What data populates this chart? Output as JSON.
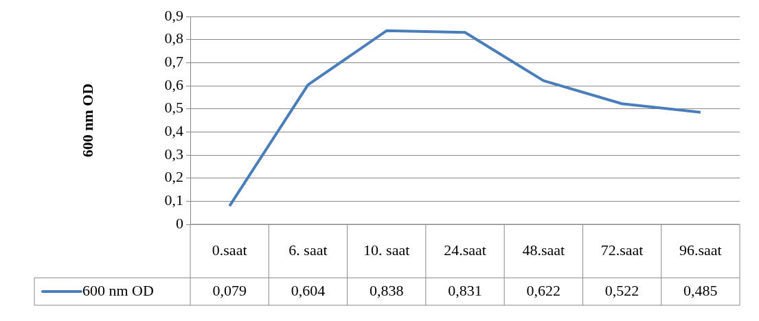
{
  "chart_data": {
    "type": "line",
    "ylabel": "600 nm OD",
    "categories": [
      "0.saat",
      "6. saat",
      "10. saat",
      "24.saat",
      "48.saat",
      "72.saat",
      "96.saat"
    ],
    "series": [
      {
        "name": "600 nm OD",
        "color": "#4a7ebb",
        "values": [
          0.079,
          0.604,
          0.838,
          0.831,
          0.622,
          0.522,
          0.485
        ],
        "value_labels": [
          "0,079",
          "0,604",
          "0,838",
          "0,831",
          "0,622",
          "0,522",
          "0,485"
        ]
      }
    ],
    "ylim": [
      0,
      0.9
    ],
    "yticks": [
      {
        "value": 0,
        "label": "0"
      },
      {
        "value": 0.1,
        "label": "0,1"
      },
      {
        "value": 0.2,
        "label": "0,2"
      },
      {
        "value": 0.3,
        "label": "0,3"
      },
      {
        "value": 0.4,
        "label": "0,4"
      },
      {
        "value": 0.5,
        "label": "0,5"
      },
      {
        "value": 0.6,
        "label": "0,6"
      },
      {
        "value": 0.7,
        "label": "0,7"
      },
      {
        "value": 0.8,
        "label": "0,8"
      },
      {
        "value": 0.9,
        "label": "0,9"
      }
    ],
    "grid": "y",
    "legend": "bottom left",
    "marker": "none",
    "line_style": "solid"
  }
}
